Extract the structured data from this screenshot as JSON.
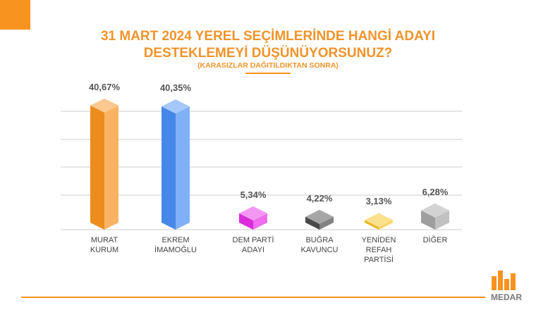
{
  "chart_data": {
    "type": "bar",
    "title": "31 MART 2024 YEREL SEÇİMLERİNDE HANGİ ADAYI\nDESTEKLEMEYİ DÜŞÜNÜYORSUNUZ?",
    "subtitle": "(KARASIZLAR DAĞITILDIKTAN SONRA)",
    "categories": [
      "MURAT\nKURUM",
      "EKREM\nİMAMOĞLU",
      "DEM PARTİ\nADAYI",
      "BUĞRA\nKAVUNCU",
      "YENİDEN\nREFAH\nPARTİSİ",
      "DİĞER"
    ],
    "values": [
      40.67,
      40.35,
      5.34,
      4.22,
      3.13,
      6.28
    ],
    "value_labels": [
      "40,67%",
      "40,35%",
      "5,34%",
      "4,22%",
      "3,13%",
      "6,28%"
    ],
    "colors": [
      "#f7931e",
      "#4a8ef5",
      "#e62ee6",
      "#4d4d4d",
      "#f7c21d",
      "#a6a6a6"
    ],
    "ylim": [
      0,
      45
    ],
    "source": "MEDAR"
  }
}
